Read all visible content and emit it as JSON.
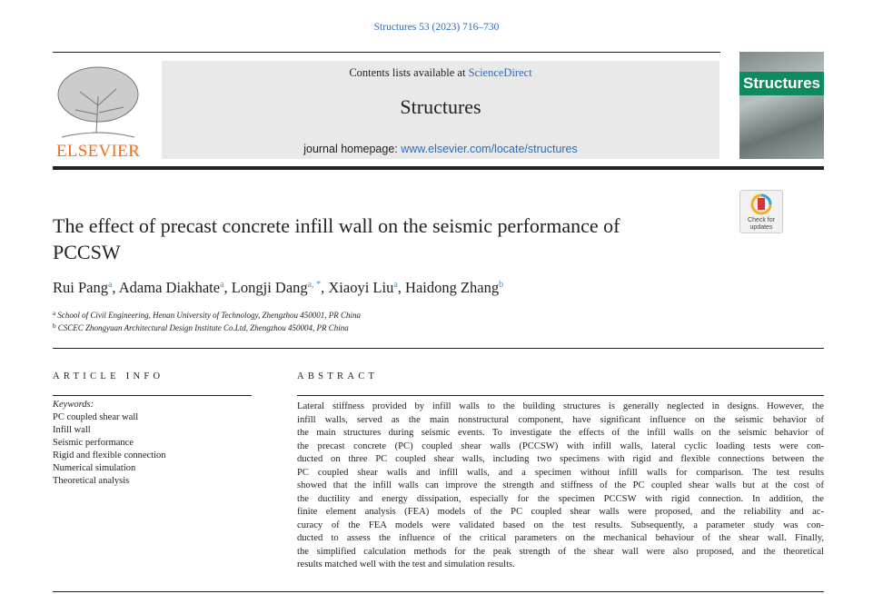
{
  "header": {
    "journal_ref": "Structures 53 (2023) 716–730",
    "contents_prefix": "Contents lists available at ",
    "sciencedirect": "ScienceDirect",
    "journal_title": "Structures",
    "homepage_prefix": "journal homepage: ",
    "homepage_url": "www.elsevier.com/locate/structures",
    "publisher_logo": "ELSEVIER",
    "cover_title": "Structures",
    "crossmark": "Check for updates"
  },
  "article": {
    "title": "The effect of precast concrete infill wall on the seismic performance of PCCSW",
    "authors": [
      {
        "name": "Rui Pang",
        "sup": "a"
      },
      {
        "name": "Adama Diakhate",
        "sup": "a"
      },
      {
        "name": "Longji Dang",
        "sup": "a, *"
      },
      {
        "name": "Xiaoyi Liu",
        "sup": "a"
      },
      {
        "name": "Haidong Zhang",
        "sup": "b"
      }
    ],
    "affiliations": [
      {
        "mark": "a",
        "text": "School of Civil Engineering, Henan University of Technology, Zhengzhou 450001, PR China"
      },
      {
        "mark": "b",
        "text": "CSCEC Zhongyuan Architectural Design Institute Co.Ltd, Zhengzhou 450004, PR China"
      }
    ]
  },
  "article_info": {
    "heading": "ARTICLE INFO",
    "keywords_label": "Keywords:",
    "keywords": [
      "PC coupled shear wall",
      "Infill wall",
      "Seismic performance",
      "Rigid and flexible connection",
      "Numerical simulation",
      "Theoretical analysis"
    ]
  },
  "abstract": {
    "heading": "ABSTRACT",
    "lines": [
      "Lateral stiffness provided by infill walls to the building structures is generally neglected in designs. However, the",
      "infill walls, served as the main nonstructural component, have significant influence on the seismic behavior of",
      "the main structures during seismic events. To investigate the effects of the infill walls on the seismic behavior of",
      "the precast concrete (PC) coupled shear walls (PCCSW) with infill walls, lateral cyclic loading tests were con-",
      "ducted on three PC coupled shear walls, including two specimens with rigid and flexible connections between the",
      "PC coupled shear walls and infill walls, and a specimen without infill walls for comparison. The test results",
      "showed that the infill walls can improve the strength and stiffness of the PC coupled shear walls but at the cost of",
      "the ductility and energy dissipation, especially for the specimen PCCSW with rigid connection. In addition, the",
      "finite element analysis (FEA) models of the PC coupled shear walls were proposed, and the reliability and ac-",
      "curacy of the FEA models were validated based on the test results. Subsequently, a parameter study was con-",
      "ducted to assess the influence of the critical parameters on the mechanical behaviour of the shear wall. Finally,",
      "the simplified calculation methods for the peak strength of the shear wall were also proposed, and the theoretical",
      "results matched well with the test and simulation results."
    ]
  }
}
